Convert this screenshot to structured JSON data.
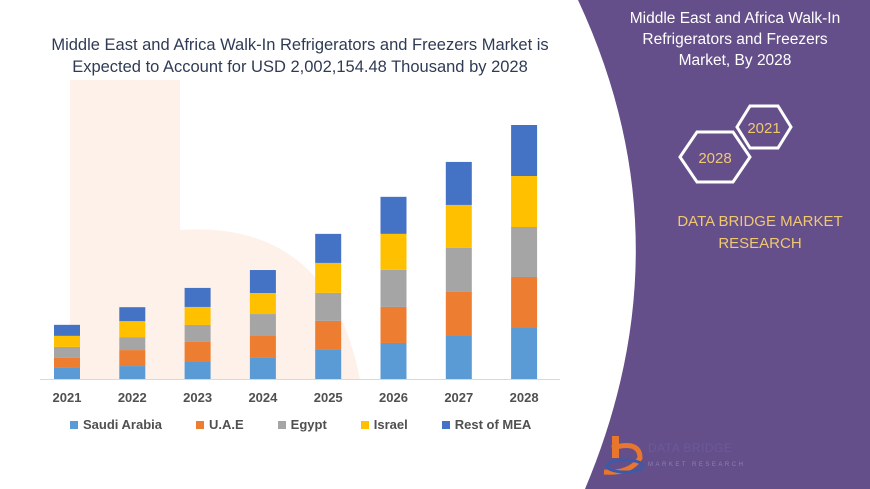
{
  "colors": {
    "panel": "#654f8a",
    "title": "#2f3b55",
    "brand": "#f0c870"
  },
  "title": {
    "line1": "Middle East and Africa Walk-In Refrigerators and Freezers Market is",
    "line2": "Expected to Account for USD 2,002,154.48 Thousand by 2028"
  },
  "side_panel": {
    "title_line1": "Middle East and Africa Walk-In",
    "title_line2": "Refrigerators and Freezers",
    "title_line3": "Market, By 2028",
    "hex_start": "2021",
    "hex_end": "2028",
    "brand_line1": "DATA BRIDGE MARKET",
    "brand_line2": "RESEARCH",
    "logo_text": "DATA BRIDGE",
    "logo_subtext": "MARKET RESEARCH"
  },
  "chart_data": {
    "type": "bar",
    "stacked": true,
    "title": "Middle East and Africa Walk-In Refrigerators and Freezers Market is Expected to Account for USD 2,002,154.48 Thousand by 2028",
    "xlabel": "",
    "ylabel": "",
    "unit": "USD Thousand",
    "grid": false,
    "legend_position": "bottom",
    "ylim": [
      0,
      2002154.48
    ],
    "categories": [
      "2021",
      "2022",
      "2023",
      "2024",
      "2025",
      "2026",
      "2027",
      "2028"
    ],
    "series": [
      {
        "name": "Saudi Arabia",
        "color": "#5b9bd5",
        "values": [
          87000,
          102000,
          134000,
          166000,
          229000,
          284000,
          339000,
          402000
        ]
      },
      {
        "name": "U.A.E",
        "color": "#ed7d31",
        "values": [
          79000,
          126000,
          158000,
          173000,
          229000,
          284000,
          347000,
          402000
        ]
      },
      {
        "name": "Egypt",
        "color": "#a5a5a5",
        "values": [
          87000,
          102000,
          134000,
          173000,
          221000,
          292000,
          347000,
          394000
        ]
      },
      {
        "name": "Israel",
        "color": "#ffc000",
        "values": [
          87000,
          126000,
          142000,
          166000,
          236000,
          284000,
          339000,
          402000
        ]
      },
      {
        "name": "Rest of MEA",
        "color": "#4472c4",
        "values": [
          87000,
          110000,
          150000,
          181000,
          229000,
          292000,
          339000,
          402154.48
        ]
      }
    ]
  }
}
